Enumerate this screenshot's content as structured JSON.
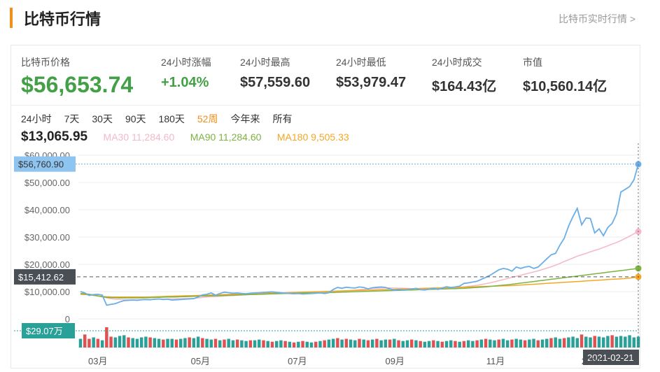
{
  "header": {
    "title": "比特币行情",
    "realtime_link": "比特币实时行情 >"
  },
  "stats": {
    "price": {
      "label": "比特币价格",
      "value": "$56,653.74"
    },
    "change": {
      "label": "24小时涨幅",
      "value": "+1.04%"
    },
    "high": {
      "label": "24小时最高",
      "value": "$57,559.60"
    },
    "low": {
      "label": "24小时最低",
      "value": "$53,979.47"
    },
    "volume": {
      "label": "24小时成交",
      "value": "$164.43亿"
    },
    "market_cap": {
      "label": "市值",
      "value": "$10,560.14亿"
    }
  },
  "ranges": [
    "24小时",
    "7天",
    "30天",
    "90天",
    "180天",
    "52周",
    "今年来",
    "所有"
  ],
  "active_range": "52周",
  "ma": {
    "current": "$13,065.95",
    "ma30": "MA30 11,284.60",
    "ma90": "MA90 11,284.60",
    "ma180": "MA180 9,505.33"
  },
  "colors": {
    "price": "#6aaee8",
    "ma30": "#f4b8c8",
    "ma90": "#7cb342",
    "ma180": "#f5a623",
    "up_bar": "#e05252",
    "down_bar": "#2aa198",
    "accent": "#f08f1a",
    "cursor_label": "#4a4f55",
    "price_label": "#8ec4f0",
    "volume_label": "#2aa198"
  },
  "chart_data": {
    "type": "line",
    "price_axis": {
      "ylim": [
        0,
        60000
      ],
      "ticks": [
        "$60,000.00",
        "$50,000.00",
        "$40,000.00",
        "$30,000.00",
        "$20,000.00",
        "$10,000.00",
        "0"
      ],
      "tick_values": [
        60000,
        50000,
        40000,
        30000,
        20000,
        10000,
        0
      ]
    },
    "x_ticks": [
      {
        "label": "03月",
        "pos": 0.02
      },
      {
        "label": "05月",
        "pos": 0.203
      },
      {
        "label": "07月",
        "pos": 0.376
      },
      {
        "label": "09月",
        "pos": 0.55
      },
      {
        "label": "11月",
        "pos": 0.73
      },
      {
        "label": "2021",
        "pos": 0.9
      }
    ],
    "crosshair": {
      "price_label": "$56,760.90",
      "price_value": 56760.9,
      "level_label": "$15,412.62",
      "level_value": 15412.62,
      "volume_label": "$29.07万",
      "date_label": "2021-02-21"
    },
    "series": [
      {
        "name": "price",
        "values": [
          10000,
          9500,
          8600,
          8900,
          9000,
          8700,
          5000,
          5300,
          5600,
          6200,
          6700,
          6800,
          6900,
          6800,
          7000,
          7100,
          7000,
          7200,
          7300,
          7100,
          7200,
          6900,
          7000,
          7100,
          7200,
          7300,
          7400,
          8000,
          8800,
          9000,
          9500,
          8700,
          9300,
          9800,
          9600,
          9400,
          9500,
          9300,
          9200,
          9400,
          9500,
          9600,
          9700,
          9800,
          9900,
          9700,
          9600,
          9400,
          9300,
          9200,
          9300,
          9100,
          9200,
          9300,
          9400,
          9500,
          9300,
          9600,
          10800,
          11500,
          11200,
          11600,
          11400,
          11300,
          11700,
          11500,
          11000,
          11400,
          11600,
          11700,
          11500,
          11000,
          10500,
          10800,
          10600,
          10700,
          10900,
          11200,
          10700,
          10600,
          10900,
          11200,
          10800,
          11300,
          11800,
          11500,
          11700,
          12000,
          13000,
          13200,
          13500,
          13800,
          14500,
          15200,
          16000,
          17000,
          18000,
          18500,
          18200,
          17500,
          19000,
          18500,
          19000,
          19200,
          18500,
          19000,
          20500,
          22000,
          23500,
          24000,
          27000,
          29500,
          34000,
          37500,
          40500,
          34500,
          37000,
          36800,
          31500,
          33000,
          30500,
          33500,
          35000,
          38500,
          46500,
          47500,
          48500,
          51000,
          56700
        ]
      },
      {
        "name": "ma30",
        "values": [
          9300,
          9200,
          9000,
          8800,
          8500,
          8100,
          7700,
          7400,
          7200,
          7100,
          7050,
          7000,
          7000,
          7000,
          7000,
          7050,
          7100,
          7150,
          7200,
          7250,
          7300,
          7300,
          7350,
          7400,
          7450,
          7500,
          7550,
          7700,
          7850,
          8000,
          8100,
          8150,
          8250,
          8350,
          8450,
          8550,
          8650,
          8750,
          8850,
          8950,
          9000,
          9050,
          9100,
          9150,
          9200,
          9250,
          9300,
          9300,
          9300,
          9300,
          9300,
          9300,
          9350,
          9400,
          9450,
          9500,
          9550,
          9650,
          9800,
          10000,
          10100,
          10250,
          10400,
          10550,
          10700,
          10850,
          11000,
          11150,
          11250,
          11300,
          11350,
          11350,
          11300,
          11250,
          11200,
          11150,
          11100,
          11050,
          11000,
          11000,
          11000,
          11050,
          11100,
          11150,
          11200,
          11300,
          11400,
          11500,
          11700,
          11900,
          12100,
          12300,
          12600,
          12900,
          13200,
          13600,
          14000,
          14400,
          14800,
          15200,
          15600,
          16000,
          16400,
          16800,
          17200,
          17600,
          18100,
          18600,
          19100,
          19700,
          20300,
          21000,
          21700,
          22300,
          23000,
          23500,
          24000,
          24600,
          25100,
          25600,
          26200,
          26800,
          27400,
          28000,
          28700,
          29500,
          30300,
          31200,
          32000
        ]
      },
      {
        "name": "ma90",
        "values": [
          9300,
          9200,
          9000,
          8700,
          8400,
          8100,
          7900,
          7800,
          7750,
          7700,
          7700,
          7700,
          7700,
          7700,
          7700,
          7750,
          7800,
          7850,
          7900,
          7950,
          8000,
          8000,
          8050,
          8100,
          8150,
          8200,
          8250,
          8300,
          8350,
          8400,
          8450,
          8500,
          8550,
          8600,
          8650,
          8700,
          8750,
          8800,
          8850,
          8900,
          8950,
          9000,
          9050,
          9100,
          9150,
          9200,
          9250,
          9300,
          9350,
          9400,
          9400,
          9450,
          9500,
          9500,
          9550,
          9600,
          9600,
          9650,
          9700,
          9750,
          9800,
          9850,
          9900,
          9950,
          10000,
          10050,
          10100,
          10150,
          10200,
          10250,
          10300,
          10350,
          10400,
          10450,
          10500,
          10550,
          10600,
          10650,
          10700,
          10750,
          10800,
          10850,
          10900,
          10950,
          11000,
          11050,
          11100,
          11150,
          11200,
          11300,
          11400,
          11500,
          11600,
          11750,
          11900,
          12050,
          12200,
          12350,
          12500,
          12700,
          12900,
          13100,
          13300,
          13500,
          13700,
          13900,
          14100,
          14300,
          14500,
          14700,
          14900,
          15100,
          15300,
          15500,
          15700,
          15900,
          16100,
          16300,
          16500,
          16700,
          16900,
          17100,
          17300,
          17500,
          17700,
          17900,
          18100,
          18300,
          18500
        ]
      },
      {
        "name": "ma180",
        "values": [
          9000,
          8900,
          8800,
          8600,
          8400,
          8200,
          8100,
          8050,
          8000,
          8000,
          8000,
          8000,
          8000,
          8000,
          8000,
          8000,
          8050,
          8100,
          8150,
          8200,
          8250,
          8300,
          8350,
          8400,
          8450,
          8500,
          8550,
          8600,
          8650,
          8700,
          8750,
          8800,
          8850,
          8900,
          8950,
          9000,
          9050,
          9100,
          9150,
          9200,
          9250,
          9300,
          9350,
          9400,
          9450,
          9500,
          9550,
          9600,
          9650,
          9700,
          9750,
          9800,
          9850,
          9900,
          9950,
          10000,
          10050,
          10100,
          10150,
          10200,
          10250,
          10300,
          10350,
          10400,
          10450,
          10500,
          10550,
          10600,
          10650,
          10700,
          10750,
          10800,
          10850,
          10900,
          10950,
          11000,
          11050,
          11100,
          11150,
          11200,
          11250,
          11300,
          11350,
          11400,
          11450,
          11500,
          11550,
          11600,
          11650,
          11700,
          11750,
          11800,
          11850,
          11900,
          11950,
          12000,
          12050,
          12100,
          12150,
          12200,
          12300,
          12400,
          12500,
          12600,
          12700,
          12800,
          12900,
          13000,
          13100,
          13200,
          13300,
          13400,
          13500,
          13600,
          13700,
          13800,
          13900,
          14000,
          14100,
          14200,
          14300,
          14400,
          14500,
          14600,
          14700,
          14800,
          14950,
          15150,
          15412.62
        ]
      }
    ],
    "volume": {
      "values": [
        0.6,
        0.9,
        0.6,
        0.7,
        0.6,
        0.5,
        1.4,
        0.75,
        0.7,
        0.8,
        0.85,
        0.7,
        0.65,
        0.6,
        0.7,
        0.75,
        0.7,
        0.65,
        0.6,
        0.55,
        0.6,
        0.6,
        0.55,
        0.6,
        0.65,
        0.7,
        0.65,
        0.75,
        0.65,
        0.6,
        0.55,
        0.6,
        0.5,
        0.55,
        0.6,
        0.5,
        0.55,
        0.5,
        0.45,
        0.5,
        0.5,
        0.55,
        0.5,
        0.45,
        0.4,
        0.45,
        0.5,
        0.45,
        0.4,
        0.35,
        0.4,
        0.45,
        0.4,
        0.35,
        0.4,
        0.45,
        0.5,
        0.55,
        0.6,
        0.65,
        0.55,
        0.6,
        0.55,
        0.5,
        0.6,
        0.55,
        0.5,
        0.55,
        0.6,
        0.5,
        0.55,
        0.55,
        0.6,
        0.5,
        0.45,
        0.5,
        0.55,
        0.5,
        0.45,
        0.4,
        0.45,
        0.5,
        0.45,
        0.4,
        0.45,
        0.5,
        0.45,
        0.4,
        0.45,
        0.5,
        0.45,
        0.5,
        0.55,
        0.6,
        0.55,
        0.5,
        0.55,
        0.6,
        0.5,
        0.55,
        0.6,
        0.55,
        0.5,
        0.55,
        0.6,
        0.5,
        0.55,
        0.6,
        0.65,
        0.7,
        0.6,
        0.65,
        0.7,
        0.75,
        0.65,
        0.9,
        0.75,
        0.7,
        0.8,
        0.75,
        0.7,
        0.8,
        0.85,
        0.75,
        0.8,
        0.75,
        0.85,
        0.7,
        0.75
      ],
      "up": [
        false,
        true,
        true,
        false,
        true,
        false,
        true,
        true,
        false,
        false,
        false,
        true,
        false,
        false,
        false,
        false,
        true,
        false,
        false,
        true,
        false,
        false,
        true,
        false,
        false,
        true,
        false,
        false,
        true,
        false,
        false,
        true,
        false,
        true,
        false,
        false,
        true,
        false,
        false,
        true,
        false,
        false,
        true,
        false,
        true,
        false,
        false,
        true,
        false,
        true,
        false,
        true,
        false,
        false,
        true,
        false,
        true,
        false,
        false,
        true,
        false,
        true,
        false,
        false,
        true,
        false,
        true,
        false,
        true,
        false,
        false,
        true,
        false,
        true,
        false,
        false,
        true,
        false,
        true,
        false,
        false,
        true,
        false,
        true,
        false,
        false,
        true,
        false,
        true,
        false,
        false,
        true,
        false,
        true,
        false,
        false,
        true,
        false,
        false,
        true,
        false,
        false,
        true,
        false,
        false,
        true,
        false,
        false,
        true,
        false,
        false,
        true,
        false,
        false,
        false,
        true,
        false,
        false,
        true,
        false,
        false,
        false,
        true,
        false,
        false,
        false,
        false,
        false,
        false
      ]
    }
  }
}
